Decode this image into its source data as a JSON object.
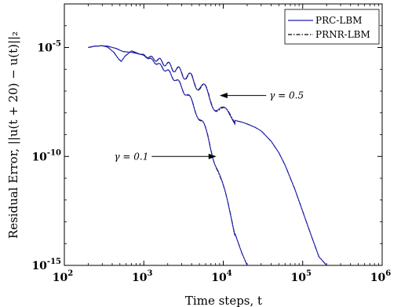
{
  "chart_data": {
    "type": "line",
    "xlabel": "Time steps, t",
    "ylabel": "Residual Error, ||u(t + 20) − u(t)||₂",
    "x_scale": "log",
    "y_scale": "log",
    "xlim": [
      100,
      1000000
    ],
    "ylim": [
      1e-15,
      0.001
    ],
    "x_ticks": [
      {
        "base": "10",
        "exp": "2",
        "value": 100
      },
      {
        "base": "10",
        "exp": "3",
        "value": 1000
      },
      {
        "base": "10",
        "exp": "4",
        "value": 10000
      },
      {
        "base": "10",
        "exp": "5",
        "value": 100000
      },
      {
        "base": "10",
        "exp": "6",
        "value": 1000000
      }
    ],
    "y_ticks": [
      {
        "base": "10",
        "exp": "-5",
        "value": 1e-05
      },
      {
        "base": "10",
        "exp": "-10",
        "value": 1e-10
      },
      {
        "base": "10",
        "exp": "-15",
        "value": 1e-15
      }
    ],
    "grid": false,
    "legend_position": "top-right",
    "series": [
      {
        "name": "PRC-LBM",
        "style": "solid",
        "color": "#1f1fb4"
      },
      {
        "name": "PRNR-LBM",
        "style": "dashdot",
        "color": "#000000"
      }
    ],
    "curves": [
      {
        "case": "gamma-0.1",
        "points": [
          [
            200,
            1e-05
          ],
          [
            240,
            1.15e-05
          ],
          [
            300,
            1.2e-05
          ],
          [
            350,
            1.05e-05
          ],
          [
            420,
            6e-06
          ],
          [
            480,
            3e-06
          ],
          [
            520,
            2.3e-06
          ],
          [
            580,
            4e-06
          ],
          [
            700,
            7e-06
          ],
          [
            900,
            5e-06
          ],
          [
            1200,
            3e-06
          ],
          [
            1600,
            1.5e-06
          ],
          [
            2000,
            8e-07
          ],
          [
            2500,
            3.5e-07
          ],
          [
            3000,
            1.5e-07
          ],
          [
            3500,
            7e-08
          ],
          [
            4000,
            3e-08
          ],
          [
            4600,
            1.2e-08
          ],
          [
            5500,
            3e-09
          ],
          [
            6500,
            6e-10
          ],
          [
            7500,
            1.2e-10
          ],
          [
            8500,
            3e-11
          ],
          [
            10000,
            3e-12
          ],
          [
            12000,
            2.5e-13
          ],
          [
            14000,
            3e-14
          ],
          [
            17000,
            4e-15
          ],
          [
            20000,
            1e-15
          ]
        ]
      },
      {
        "case": "gamma-0.5",
        "points": [
          [
            200,
            1e-05
          ],
          [
            240,
            1.15e-05
          ],
          [
            300,
            1.2e-05
          ],
          [
            350,
            1.15e-05
          ],
          [
            450,
            9e-06
          ],
          [
            550,
            6.5e-06
          ],
          [
            700,
            6e-06
          ],
          [
            900,
            5e-06
          ],
          [
            1200,
            3.5e-06
          ],
          [
            1600,
            2.5e-06
          ],
          [
            2000,
            1.6e-06
          ],
          [
            3000,
            7e-07
          ],
          [
            4000,
            3.5e-07
          ],
          [
            5000,
            1.8e-07
          ],
          [
            6000,
            9e-08
          ],
          [
            7000,
            4.5e-08
          ],
          [
            8000,
            2.5e-08
          ],
          [
            9000,
            1.4e-08
          ],
          [
            10000,
            9e-09
          ],
          [
            12000,
            5.5e-09
          ],
          [
            14000,
            4.5e-09
          ],
          [
            17000,
            3.8e-09
          ],
          [
            20000,
            3.1e-09
          ],
          [
            25000,
            2.2e-09
          ],
          [
            30000,
            1.5e-09
          ],
          [
            40000,
            5e-10
          ],
          [
            50000,
            1.5e-10
          ],
          [
            60000,
            4e-11
          ],
          [
            80000,
            3e-12
          ],
          [
            100000,
            3e-13
          ],
          [
            130000,
            2e-14
          ],
          [
            160000,
            2.5e-15
          ],
          [
            200000,
            1e-15
          ]
        ]
      }
    ],
    "annotations": [
      {
        "label": "γ = 0.5",
        "x": 9000,
        "y": 6.3e-08,
        "label_x": 38000,
        "label_y": 6.3e-08
      },
      {
        "label": "γ = 0.1",
        "x": 8200,
        "y": 1e-10,
        "label_x": 1150,
        "label_y": 1e-10
      }
    ]
  }
}
